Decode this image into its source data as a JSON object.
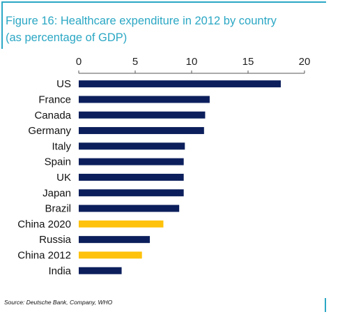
{
  "chart_data": {
    "type": "bar",
    "orientation": "horizontal",
    "title": "Figure 16: Healthcare expenditure in 2012 by country",
    "subtitle": "(as percentage of GDP)",
    "categories": [
      "US",
      "France",
      "Canada",
      "Germany",
      "Italy",
      "Spain",
      "UK",
      "Japan",
      "Brazil",
      "China 2020",
      "Russia",
      "China 2012",
      "India"
    ],
    "values": [
      17.9,
      11.6,
      11.2,
      11.1,
      9.4,
      9.3,
      9.3,
      9.3,
      8.9,
      7.5,
      6.3,
      5.6,
      3.8
    ],
    "highlight": [
      false,
      false,
      false,
      false,
      false,
      false,
      false,
      false,
      false,
      true,
      false,
      true,
      false
    ],
    "xlim": [
      0,
      20
    ],
    "xticks": [
      0,
      5,
      10,
      15,
      20
    ],
    "axis_position": "top",
    "grid": false,
    "legend": "none",
    "colors": {
      "bar": "#0c1f5c",
      "highlight": "#fec20c",
      "accent": "#2ba7c4"
    }
  },
  "source": "Source: Deutsche Bank, Company, WHO"
}
